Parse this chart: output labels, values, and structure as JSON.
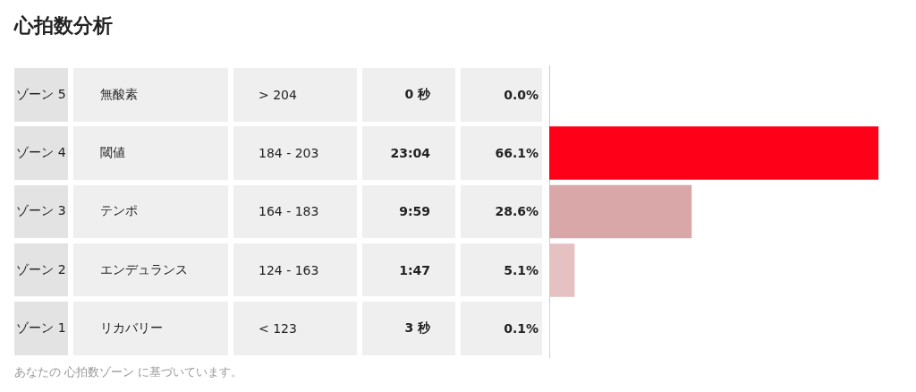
{
  "chart_data": {
    "type": "bar",
    "orientation": "horizontal",
    "title": "心拍数分析",
    "categories": [
      "ゾーン 5",
      "ゾーン 4",
      "ゾーン 3",
      "ゾーン 2",
      "ゾーン 1"
    ],
    "values": [
      0,
      66.1,
      28.6,
      5.1,
      0.1
    ],
    "colors": [
      "#f0c8c8",
      "#ff0019",
      "#d9a7a8",
      "#e6c1c2",
      "#efd6d6"
    ],
    "value_labels": [
      "0.0%",
      "66.1%",
      "28.6%",
      "5.1%",
      "0.1%"
    ],
    "xlim": [
      0,
      66.1
    ],
    "tick_labels": false,
    "legend": false,
    "annotations": [
      "無酸素",
      "> 204",
      "0 秒",
      "閾値",
      "184 - 203",
      "23:04",
      "テンポ",
      "164 - 183",
      "9:59",
      "エンデュランス",
      "124 - 163",
      "1:47",
      "リカバリー",
      "< 123",
      "3 秒",
      "あなたの 心拍数ゾーン に基づいています。"
    ]
  }
}
